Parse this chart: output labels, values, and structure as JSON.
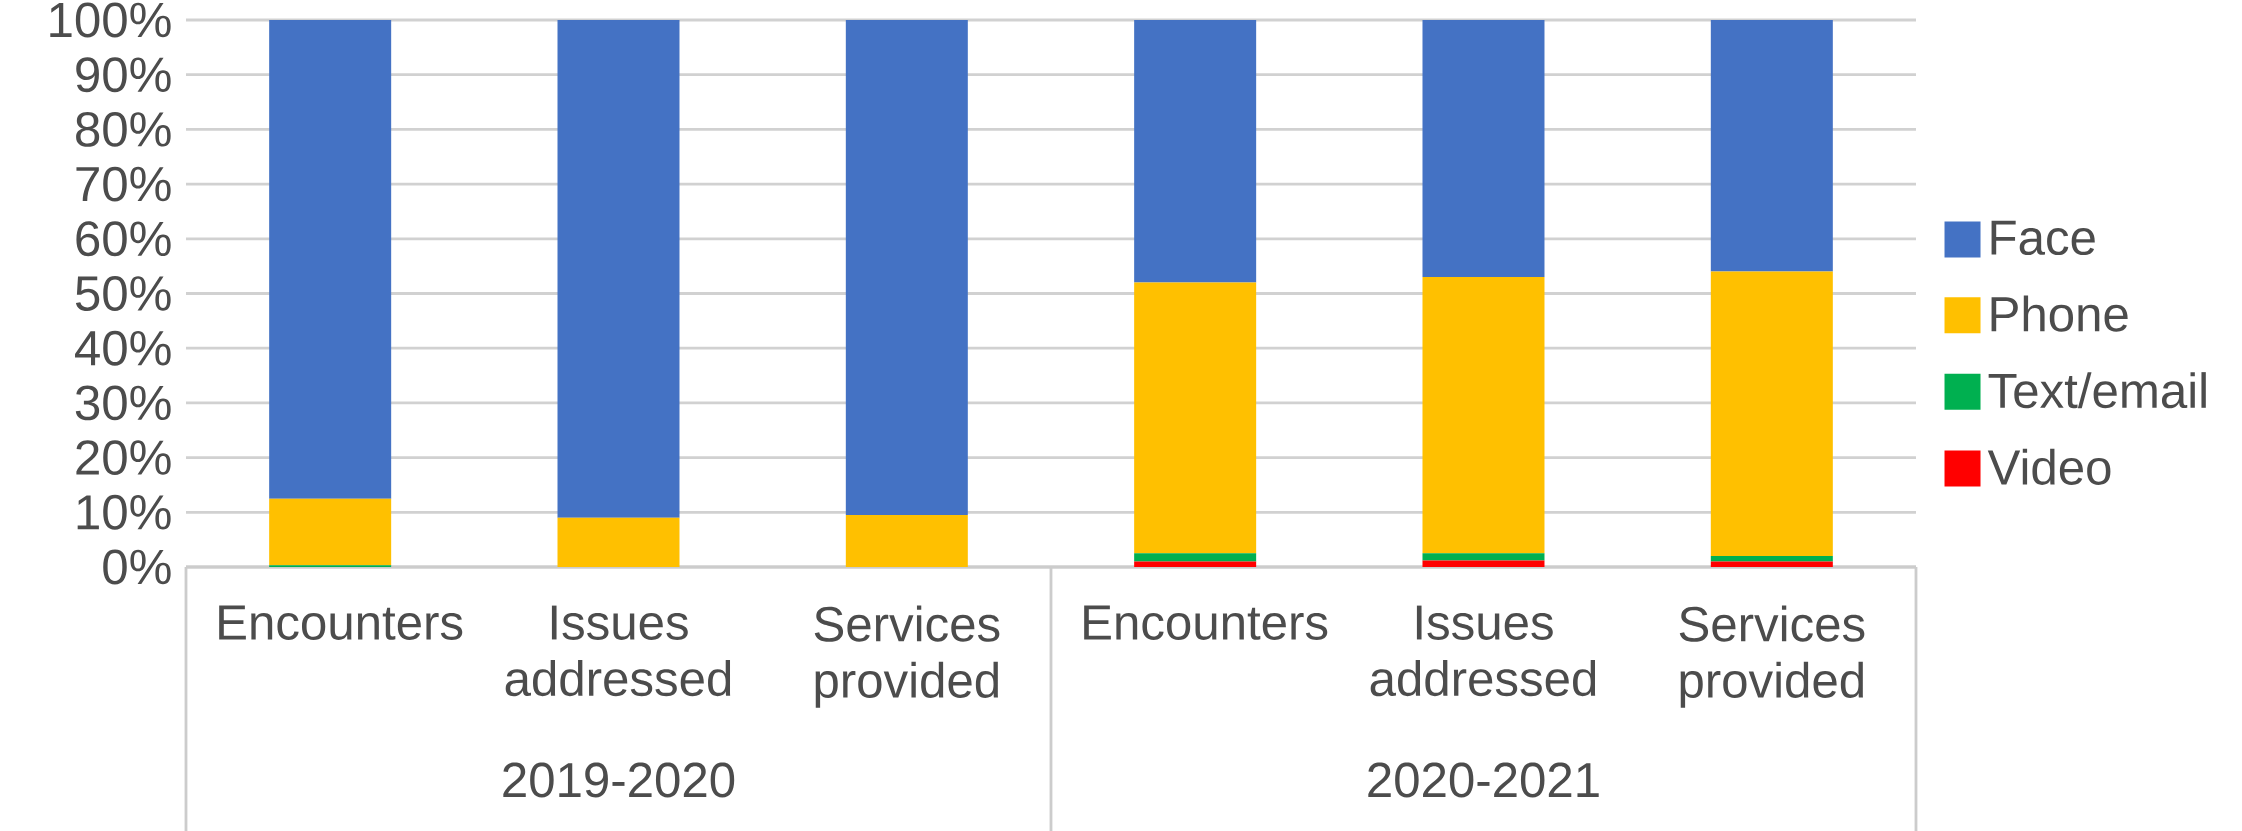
{
  "chart_data": {
    "type": "bar",
    "stacked": true,
    "categories": [
      "Encounters",
      "Issues addressed",
      "Services provided",
      "Encounters",
      "Issues addressed",
      "Services provided"
    ],
    "series": [
      {
        "name": "Video",
        "color": "#ff0000",
        "values": [
          0,
          0,
          0,
          1,
          1.2,
          1
        ]
      },
      {
        "name": "Text/email",
        "color": "#00b050",
        "values": [
          0.3,
          0,
          0,
          1.5,
          1.3,
          1
        ]
      },
      {
        "name": "Phone",
        "color": "#ffc000",
        "values": [
          12.2,
          9,
          9.5,
          49.5,
          50.5,
          52
        ]
      },
      {
        "name": "Face",
        "color": "#4472c4",
        "values": [
          87.5,
          91,
          90.5,
          48,
          47,
          46
        ]
      }
    ],
    "ylim": [
      0,
      100
    ],
    "yticks": [
      {
        "value": 0,
        "label": "0%"
      },
      {
        "value": 10,
        "label": "10%"
      },
      {
        "value": 20,
        "label": "20%"
      },
      {
        "value": 30,
        "label": "30%"
      },
      {
        "value": 40,
        "label": "40%"
      },
      {
        "value": 50,
        "label": "50%"
      },
      {
        "value": 60,
        "label": "60%"
      },
      {
        "value": 70,
        "label": "70%"
      },
      {
        "value": 80,
        "label": "80%"
      },
      {
        "value": 90,
        "label": "90%"
      },
      {
        "value": 100,
        "label": "100%"
      }
    ],
    "grid": "y",
    "legend": "right",
    "annotations": [
      "2019-2020",
      "2020-2021"
    ]
  }
}
